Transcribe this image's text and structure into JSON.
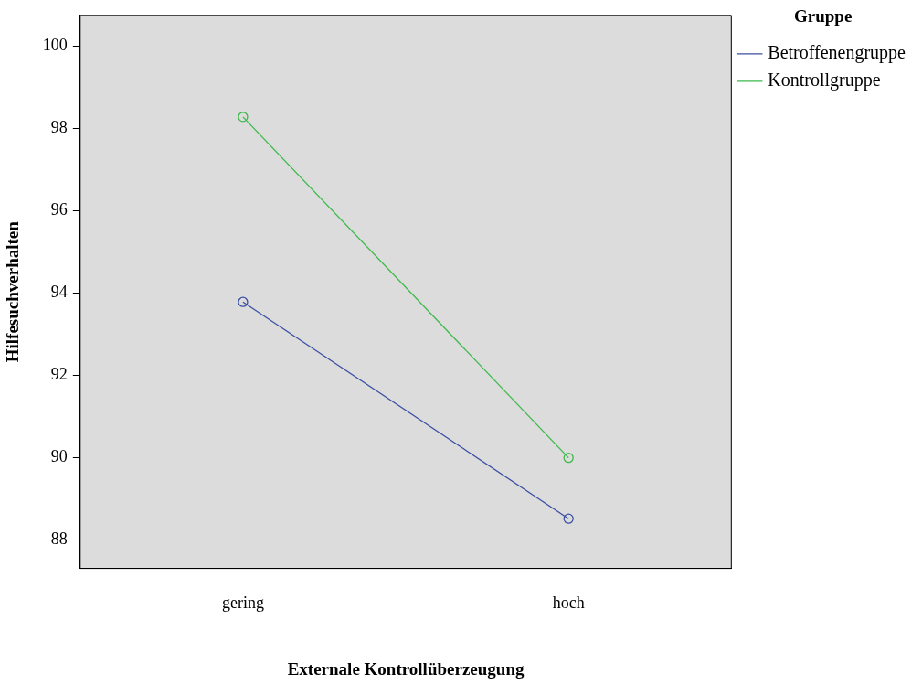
{
  "chart_data": {
    "type": "line",
    "xlabel": "Externale Kontrollüberzeugung",
    "ylabel": "Hilfesuchverhalten",
    "legend_title": "Gruppe",
    "categories": [
      "gering",
      "hoch"
    ],
    "series": [
      {
        "name": "Betroffenengruppe",
        "color": "#3a4fa3",
        "values": [
          93.78,
          88.51
        ]
      },
      {
        "name": "Kontrollgruppe",
        "color": "#3cb94a",
        "values": [
          98.28,
          89.99
        ]
      }
    ],
    "ylim": [
      87.3,
      100.75
    ],
    "yticks": [
      88,
      90,
      92,
      94,
      96,
      98,
      100
    ],
    "grid": false,
    "legend": "top right",
    "marker": "circle",
    "line_style": "solid"
  }
}
